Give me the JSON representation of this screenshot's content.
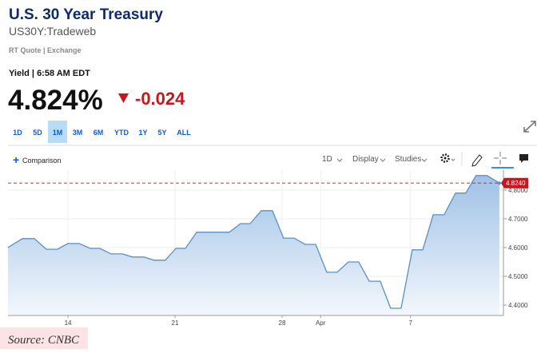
{
  "header": {
    "title": "U.S. 30 Year Treasury",
    "symbol": "US30Y:Tradeweb",
    "quote_type": "RT Quote | Exchange"
  },
  "quote": {
    "label": "Yield | 6:58 AM EDT",
    "price": "4.824%",
    "change": "-0.024"
  },
  "range_buttons": [
    "1D",
    "5D",
    "1M",
    "3M",
    "6M",
    "YTD",
    "1Y",
    "5Y",
    "ALL"
  ],
  "active_range_index": 2,
  "toolbar": {
    "comparison": "Comparison",
    "interval": "1D",
    "display": "Display",
    "studies": "Studies"
  },
  "chart_data": {
    "type": "line",
    "x": [
      0.2,
      0.87,
      1.43,
      1.99,
      2.51,
      3.0,
      3.52,
      4.04,
      4.49,
      5.01,
      5.54,
      6.02,
      6.54,
      7.03,
      7.55,
      8.04,
      8.49,
      9.01,
      9.53,
      10.01,
      10.54,
      11.06,
      11.51,
      12.03,
      12.55,
      13.07,
      13.56,
      14.08,
      14.57,
      15.09,
      15.57,
      16.1,
      16.58,
      17.07,
      17.59,
      18.07,
      18.56,
      19.08,
      19.57,
      20.06,
      20.57,
      21.1,
      21.58,
      22.06,
      22.57,
      23.15
    ],
    "series": [
      {
        "color": "#5b8fc7",
        "values": [
          4.6,
          4.631,
          4.631,
          4.594,
          4.594,
          4.614,
          4.614,
          4.597,
          4.597,
          4.578,
          4.578,
          4.567,
          4.567,
          4.556,
          4.556,
          4.597,
          4.597,
          4.653,
          4.653,
          4.653,
          4.653,
          4.683,
          4.683,
          4.728,
          4.728,
          4.633,
          4.633,
          4.611,
          4.611,
          4.514,
          4.514,
          4.55,
          4.55,
          4.483,
          4.483,
          4.389,
          4.389,
          4.592,
          4.592,
          4.714,
          4.714,
          4.789,
          4.789,
          4.85,
          4.85,
          4.824
        ]
      }
    ],
    "xlim": [
      0.2,
      23.34
    ],
    "xticks": [
      {
        "value": 3,
        "label": "14"
      },
      {
        "value": 8,
        "label": "21"
      },
      {
        "value": 13,
        "label": "28"
      },
      {
        "value": 14.8,
        "label": "Apr"
      },
      {
        "value": 19,
        "label": "7"
      }
    ],
    "ylim": [
      4.364,
      4.869
    ],
    "yticks": [
      {
        "value": 4.4,
        "label": "4.4000"
      },
      {
        "value": 4.5,
        "label": "4.5000"
      },
      {
        "value": 4.6,
        "label": "4.6000"
      },
      {
        "value": 4.7,
        "label": "4.7000"
      },
      {
        "value": 4.8,
        "label": "4.8000"
      }
    ],
    "last": {
      "value": 4.824,
      "label": "4.8240",
      "color": "#c9161d"
    },
    "grid": true
  },
  "source": "Source: CNBC"
}
